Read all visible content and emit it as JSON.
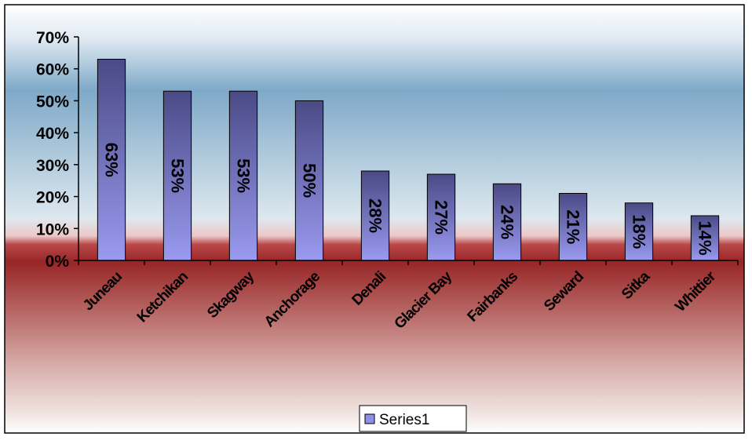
{
  "chart_data": {
    "type": "bar",
    "categories": [
      "Juneau",
      "Ketchikan",
      "Skagway",
      "Anchorage",
      "Denali",
      "Glacier Bay",
      "Fairbanks",
      "Seward",
      "Sitka",
      "Whittier"
    ],
    "series": [
      {
        "name": "Series1",
        "values": [
          63,
          53,
          53,
          50,
          28,
          27,
          24,
          21,
          18,
          14
        ],
        "data_labels": [
          "63%",
          "53%",
          "53%",
          "50%",
          "28%",
          "27%",
          "24%",
          "21%",
          "18%",
          "14%"
        ]
      }
    ],
    "y_tick_labels": [
      "0%",
      "10%",
      "20%",
      "30%",
      "40%",
      "50%",
      "60%",
      "70%"
    ],
    "ylim": [
      0,
      70
    ],
    "y_unit": "%",
    "grid": false,
    "legend_position": "bottom",
    "colors": {
      "bar_fill_top": "#4a4a86",
      "bar_fill_bottom": "#8f8fe8",
      "plot_background_top": "#2f6f9f",
      "plot_background_bottom": "#7a1010",
      "legend_swatch": "#8f8fe8"
    }
  }
}
